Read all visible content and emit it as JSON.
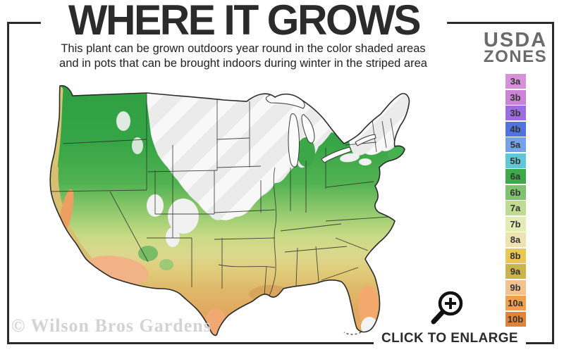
{
  "header": {
    "title": "WHERE IT GROWS",
    "subtitle_line1": "This plant can be grown outdoors year round in the color shaded areas",
    "subtitle_line2": "and in pots that can be brought indoors during winter in the striped area"
  },
  "legend": {
    "heading_top": "USDA",
    "heading_bottom": "ZONES",
    "zones": [
      {
        "label": "3a",
        "color": "#d592d8"
      },
      {
        "label": "3b",
        "color": "#cb83d6"
      },
      {
        "label": "3b",
        "color": "#9c6ce2"
      },
      {
        "label": "4b",
        "color": "#4f74dc"
      },
      {
        "label": "5a",
        "color": "#74a3ea"
      },
      {
        "label": "5b",
        "color": "#5ec8d8"
      },
      {
        "label": "6a",
        "color": "#3fa94a"
      },
      {
        "label": "6b",
        "color": "#7fc46d"
      },
      {
        "label": "7a",
        "color": "#c0dc92"
      },
      {
        "label": "7b",
        "color": "#e3ecb4"
      },
      {
        "label": "8a",
        "color": "#eee3af"
      },
      {
        "label": "8b",
        "color": "#e9c755"
      },
      {
        "label": "9a",
        "color": "#ccb44d"
      },
      {
        "label": "9b",
        "color": "#f4c28e"
      },
      {
        "label": "10a",
        "color": "#f09f4c"
      },
      {
        "label": "10b",
        "color": "#e18438"
      }
    ]
  },
  "map": {
    "watermark": "© Wilson Bros Gardens"
  },
  "footer": {
    "enlarge_label": "CLICK TO ENLARGE"
  },
  "colors": {
    "frame": "#2b2b2b",
    "title_text": "#2b2b2b",
    "subtitle_text": "#222222",
    "legend_heading_text": "#6b6b6b",
    "watermark_text": "#d3d3d3",
    "map_outline": "#2a2a2a"
  },
  "map_gradient": [
    "#2e9e41",
    "#35a546",
    "#52b251",
    "#7cc264",
    "#a5d076",
    "#c8da85",
    "#dcd88d",
    "#e0cb79",
    "#dfb96b",
    "#e0a95f",
    "#efa768"
  ]
}
